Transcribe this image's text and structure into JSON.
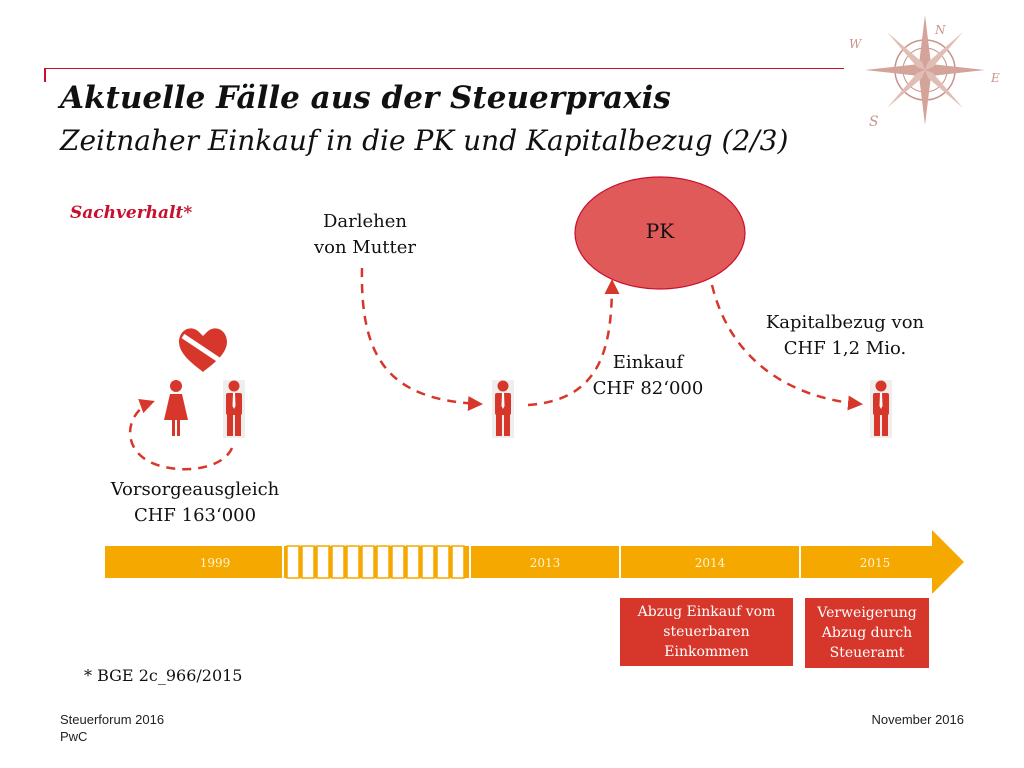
{
  "slide": {
    "title": "Aktuelle Fälle aus der Steuerpraxis",
    "subtitle": "Zeitnaher Einkauf in die PK und Kapitalbezug (2/3)",
    "section_label": "Sachverhalt*",
    "footnote": "* BGE 2c_966/2015"
  },
  "diagram": {
    "pk_node": "PK",
    "labels": {
      "darlehen_line1": "Darlehen",
      "darlehen_line2": "von Mutter",
      "einkauf_line1": "Einkauf",
      "einkauf_line2": "CHF 82‘000",
      "kapitalbezug_line1": "Kapitalbezug von",
      "kapitalbezug_line2": "CHF 1,2 Mio.",
      "vorsorge_line1": "Vorsorgeausgleich",
      "vorsorge_line2": "CHF 163‘000"
    },
    "timeline": {
      "years": [
        "1999",
        "2013",
        "2014",
        "2015"
      ]
    },
    "boxes": {
      "abzug_line1": "Abzug Einkauf vom",
      "abzug_line2": "steuerbaren",
      "abzug_line3": "Einkommen",
      "verweigerung_line1": "Verweigerung",
      "verweigerung_line2": "Abzug durch",
      "verweigerung_line3": "Steueramt"
    },
    "compass_letters": [
      "N",
      "E",
      "S",
      "W"
    ]
  },
  "footer": {
    "event": "Steuerforum 2016",
    "company": "PwC",
    "date": "November 2016"
  },
  "colors": {
    "accent_red": "#c8102e",
    "pk_fill": "#e05a5a",
    "timeline_orange": "#f5a800",
    "box_red": "#d7372b"
  }
}
